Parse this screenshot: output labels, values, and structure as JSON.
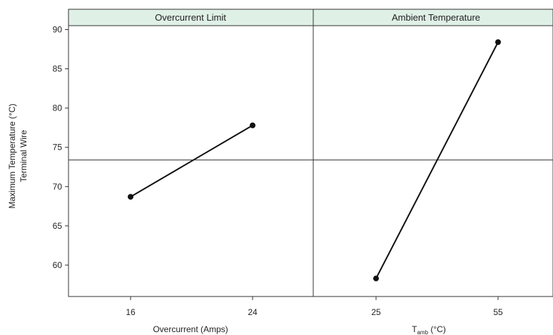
{
  "chart_data": {
    "type": "line",
    "ylabel_line1": "Maximum Temperature (°C)",
    "ylabel_line2": "Terminal Wire",
    "ylim": [
      56,
      90.5
    ],
    "yticks": [
      60,
      65,
      70,
      75,
      80,
      85,
      90
    ],
    "reference_line": 73.4,
    "colors": {
      "strip": "#dff0e6",
      "line": "#111111",
      "grid": "#333333"
    },
    "panels": [
      {
        "title": "Overcurrent Limit",
        "xlabel": "Overcurrent (Amps)",
        "categories": [
          "16",
          "24"
        ],
        "values": [
          68.7,
          77.8
        ]
      },
      {
        "title": "Ambient Temperature",
        "xlabel_main": "T",
        "xlabel_sub": "amb",
        "xlabel_unit": " (°C)",
        "categories": [
          "25",
          "55"
        ],
        "values": [
          58.3,
          88.4
        ]
      }
    ]
  }
}
